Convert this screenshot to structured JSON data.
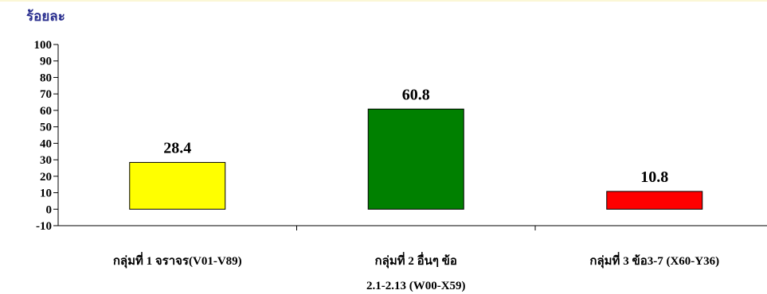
{
  "chart_data": {
    "type": "bar",
    "y_unit_label": "ร้อยละ",
    "categories": [
      [
        "กลุ่มที่ 1 จราจร(V01-V89)"
      ],
      [
        "กลุ่มที่ 2 อื่นๆ ข้อ",
        "2.1-2.13 (W00-X59)"
      ],
      [
        "กลุ่มที่ 3 ข้อ3-7 (X60-Y36)"
      ]
    ],
    "values": [
      28.4,
      60.8,
      10.8
    ],
    "value_labels": [
      "28.4",
      "60.8",
      "10.8"
    ],
    "bar_colors": [
      "#FFFF00",
      "#008000",
      "#FF0000"
    ],
    "ylim": [
      -10,
      100
    ],
    "y_ticks": [
      -10,
      0,
      10,
      20,
      30,
      40,
      50,
      60,
      70,
      80,
      90,
      100
    ],
    "grid": false,
    "legend": "none"
  }
}
